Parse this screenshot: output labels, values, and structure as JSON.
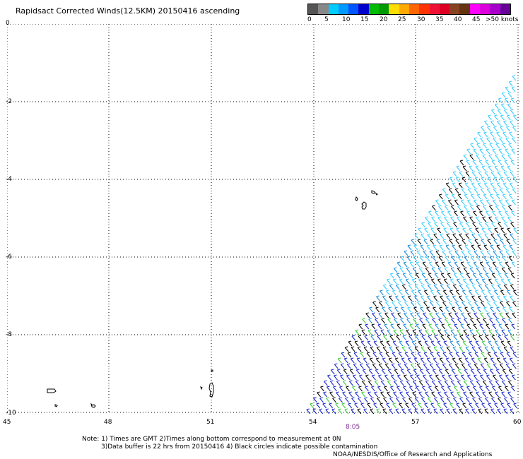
{
  "title": "Rapidsact Corrected Winds(12.5KM) 20150416 ascending",
  "legend": {
    "colors": [
      "#555555",
      "#888888",
      "#00ccff",
      "#0099ff",
      "#0055ff",
      "#0000cc",
      "#00bb00",
      "#009900",
      "#ffdd00",
      "#ffaa00",
      "#ff6600",
      "#ff3300",
      "#ee1133",
      "#dd0022",
      "#884422",
      "#663311",
      "#ff00ff",
      "#dd00dd",
      "#aa00cc",
      "#660099"
    ],
    "labels": [
      "0",
      "5",
      "10",
      "15",
      "20",
      "25",
      "30",
      "35",
      "40",
      "45",
      ">50 knots"
    ]
  },
  "axes": {
    "y_ticks": [
      "0",
      "-2",
      "-4",
      "-6",
      "-8",
      "-10"
    ],
    "x_ticks": [
      "45",
      "48",
      "51",
      "54",
      "57",
      "60"
    ]
  },
  "swath_time": "8:05",
  "notes": {
    "line1": "Note: 1) Times are GMT 2)Times along bottom correspond to measurement at 0N",
    "line2": "3)Data buffer is 22 hrs from 20150416 4) Black circles indicate possible contamination",
    "credit": "NOAA/NESDIS/Office of Research and Applications"
  },
  "wind_colors": {
    "light_blue": "#33ccff",
    "mid_blue": "#1188dd",
    "dark_blue": "#1122cc",
    "green": "#33cc33",
    "black": "#000000"
  }
}
